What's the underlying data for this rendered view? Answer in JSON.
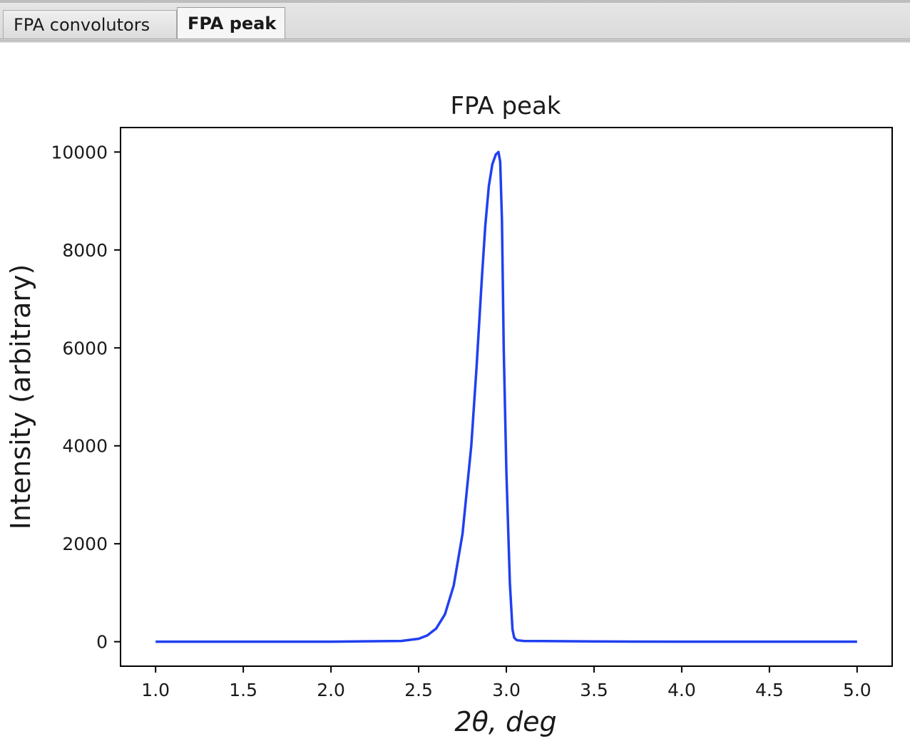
{
  "tabs": [
    {
      "label": "FPA convolutors",
      "active": false
    },
    {
      "label": "FPA peak",
      "active": true
    }
  ],
  "chart_data": {
    "type": "line",
    "title": "FPA peak",
    "xlabel": "2θ, deg",
    "ylabel": "Intensity (arbitrary)",
    "xlim": [
      0.8,
      5.2
    ],
    "ylim": [
      -500,
      10500
    ],
    "xticks": [
      1.0,
      1.5,
      2.0,
      2.5,
      3.0,
      3.5,
      4.0,
      4.5,
      5.0
    ],
    "xtick_labels": [
      "1.0",
      "1.5",
      "2.0",
      "2.5",
      "3.0",
      "3.5",
      "4.0",
      "4.5",
      "5.0"
    ],
    "yticks": [
      0,
      2000,
      4000,
      6000,
      8000,
      10000
    ],
    "ytick_labels": [
      "0",
      "2000",
      "4000",
      "6000",
      "8000",
      "10000"
    ],
    "grid": false,
    "line_color": "#2040f0",
    "series": [
      {
        "x": [
          1.0,
          2.0,
          2.4,
          2.5,
          2.55,
          2.6,
          2.65,
          2.7,
          2.75,
          2.8,
          2.83,
          2.86,
          2.88,
          2.9,
          2.92,
          2.94,
          2.955,
          2.965,
          2.975,
          2.985,
          3.0,
          3.02,
          3.035,
          3.045,
          3.06,
          3.1,
          3.5,
          4.0,
          5.0
        ],
        "y": [
          0,
          0,
          15,
          60,
          130,
          270,
          560,
          1150,
          2200,
          4000,
          5600,
          7400,
          8500,
          9300,
          9750,
          9950,
          10000,
          9800,
          8600,
          6000,
          3500,
          1200,
          250,
          80,
          30,
          15,
          5,
          0,
          0
        ]
      }
    ]
  }
}
